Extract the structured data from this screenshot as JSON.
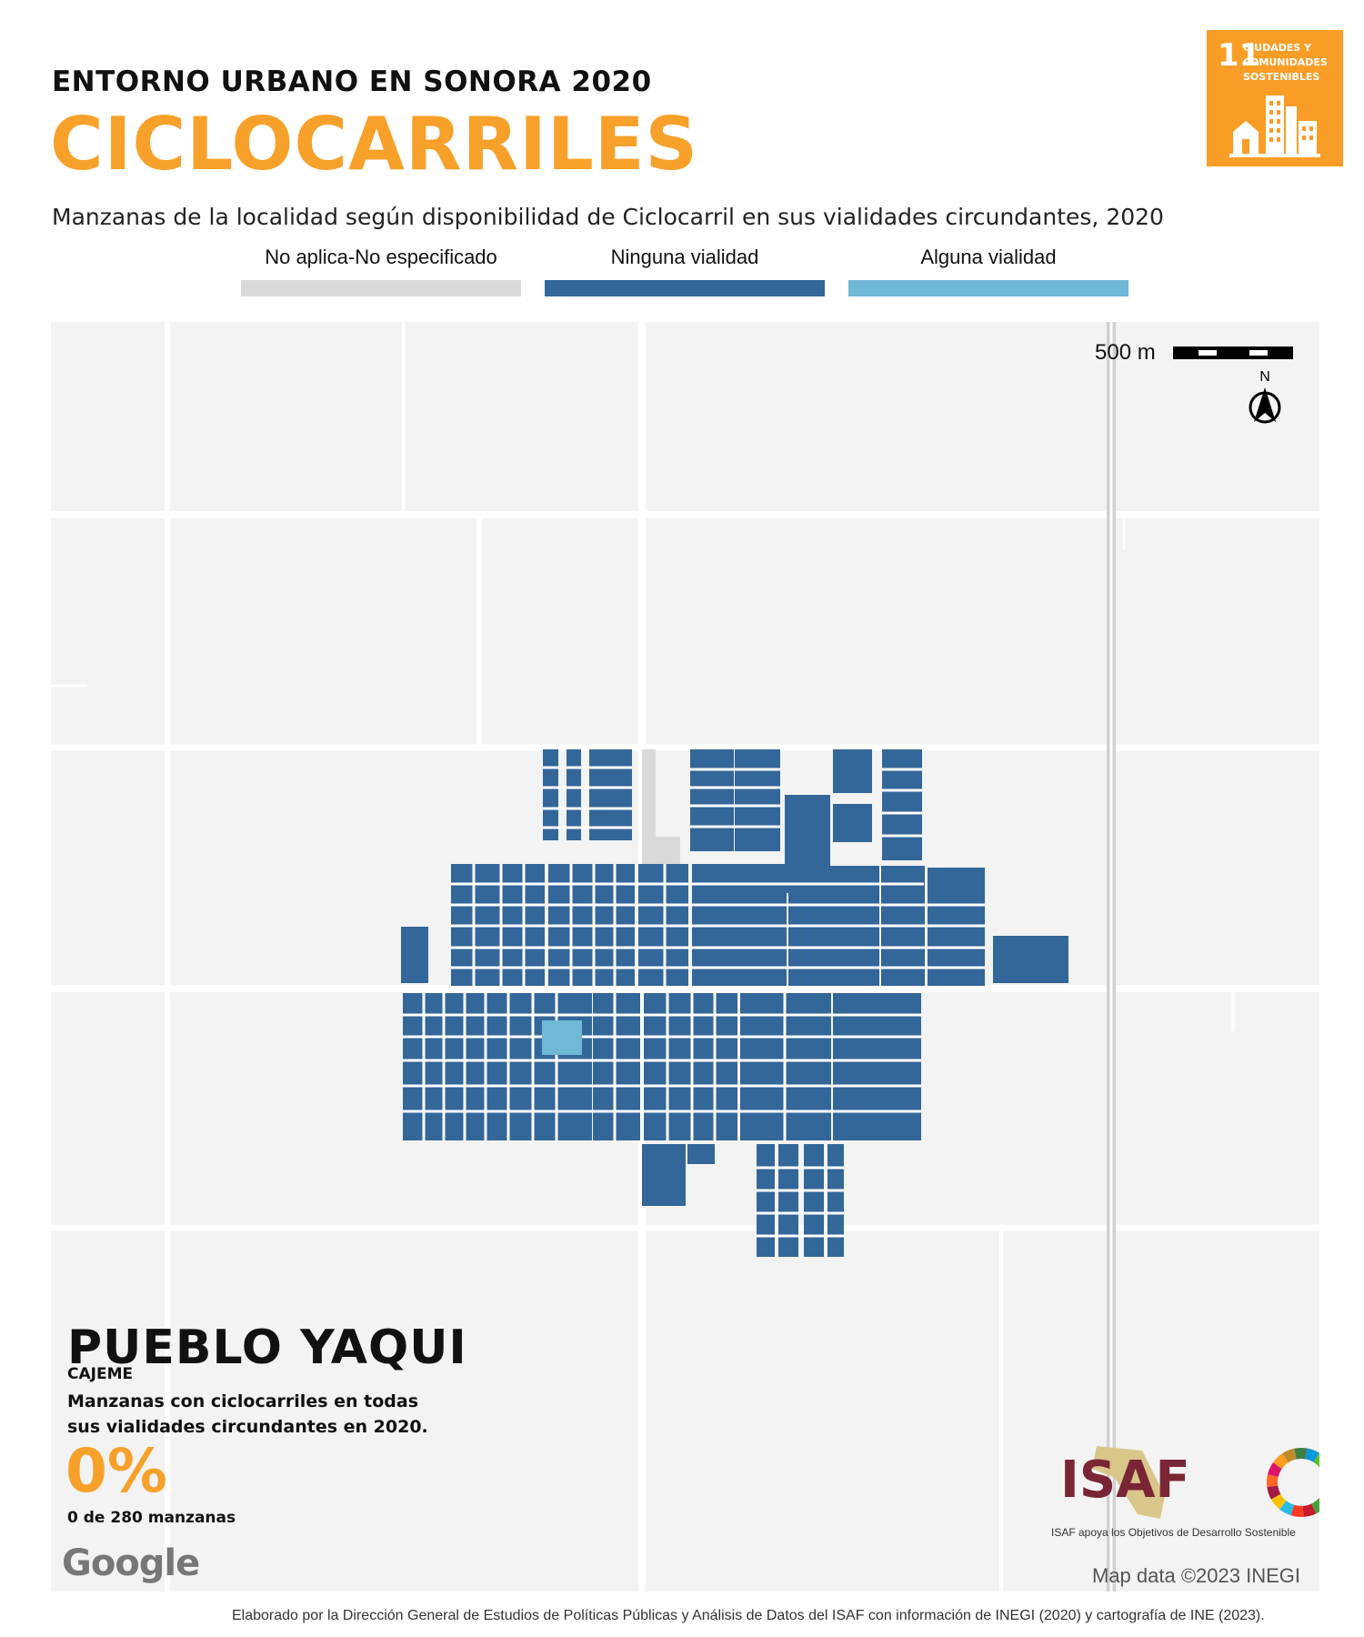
{
  "header": {
    "supertitle": "ENTORNO URBANO EN SONORA 2020",
    "title": "CICLOCARRILES",
    "subtitle": "Manzanas de la localidad según disponibilidad de Ciclocarril en sus vialidades circundantes, 2020"
  },
  "sdg_badge": {
    "number": "11",
    "text": "CIUDADES Y COMUNIDADES SOSTENIBLES",
    "color": "#f99d26",
    "icon": "city-buildings-icon"
  },
  "legend": [
    {
      "label": "No aplica-No especificado",
      "color": "#d9d9d9"
    },
    {
      "label": "Ninguna vialidad",
      "color": "#336699"
    },
    {
      "label": "Alguna vialidad",
      "color": "#6fb8d6"
    }
  ],
  "map": {
    "background": "#f3f3f3",
    "road_color": "#ffffff",
    "scale_label": "500 m",
    "north_label": "N"
  },
  "locality": {
    "name": "PUEBLO YAQUI",
    "municipio": "CAJEME",
    "description": "Manzanas con ciclocarriles en todas sus vialidades circundantes en 2020.",
    "percent": "0%",
    "count": "0 de 280 manzanas"
  },
  "attribution": {
    "google": "Google",
    "map_data": "Map data ©2023 INEGI"
  },
  "isaf": {
    "logo_text": "ISAF",
    "tagline": "ISAF apoya los Objetivos de Desarrollo Sostenible",
    "brand_color": "#7a2535"
  },
  "footer": "Elaborado por la Dirección General de Estudios de Políticas Públicas y Análisis de Datos del ISAF con información de INEGI (2020) y cartografía de INE (2023)."
}
